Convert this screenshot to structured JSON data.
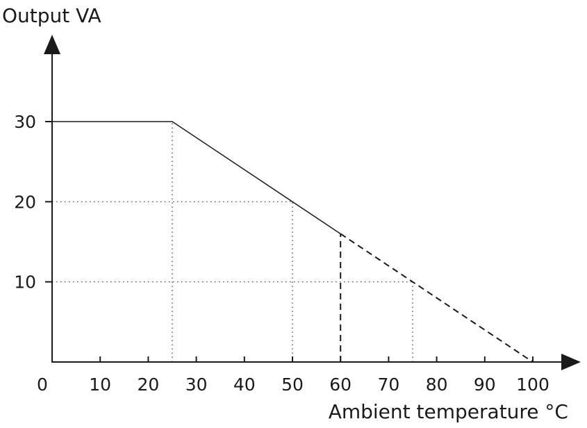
{
  "chart_data": {
    "type": "line",
    "ylabel": "Output VA",
    "xlabel": "Ambient temperature °C",
    "xlim": [
      0,
      100
    ],
    "ylim": [
      0,
      30
    ],
    "x_ticks": [
      "0",
      "10",
      "20",
      "30",
      "40",
      "50",
      "60",
      "70",
      "80",
      "90",
      "100"
    ],
    "y_ticks": [
      "30",
      "20",
      "10"
    ],
    "series": [
      {
        "style": "solid",
        "points": [
          [
            0,
            30
          ],
          [
            25,
            30
          ],
          [
            60,
            16
          ]
        ]
      },
      {
        "style": "dashed",
        "points": [
          [
            60,
            16
          ],
          [
            100,
            0
          ]
        ]
      }
    ],
    "guides": [
      {
        "style": "dotted",
        "points": [
          [
            25,
            0
          ],
          [
            25,
            30
          ]
        ]
      },
      {
        "style": "dotted",
        "points": [
          [
            0,
            20
          ],
          [
            50,
            20
          ]
        ]
      },
      {
        "style": "dotted",
        "points": [
          [
            50,
            0
          ],
          [
            50,
            20
          ]
        ]
      },
      {
        "style": "dotted",
        "points": [
          [
            0,
            10
          ],
          [
            75,
            10
          ]
        ]
      },
      {
        "style": "dotted",
        "points": [
          [
            75,
            0
          ],
          [
            75,
            10
          ]
        ]
      },
      {
        "style": "dashed",
        "points": [
          [
            60,
            0
          ],
          [
            60,
            16
          ]
        ]
      }
    ],
    "grid": false,
    "legend": "none"
  }
}
